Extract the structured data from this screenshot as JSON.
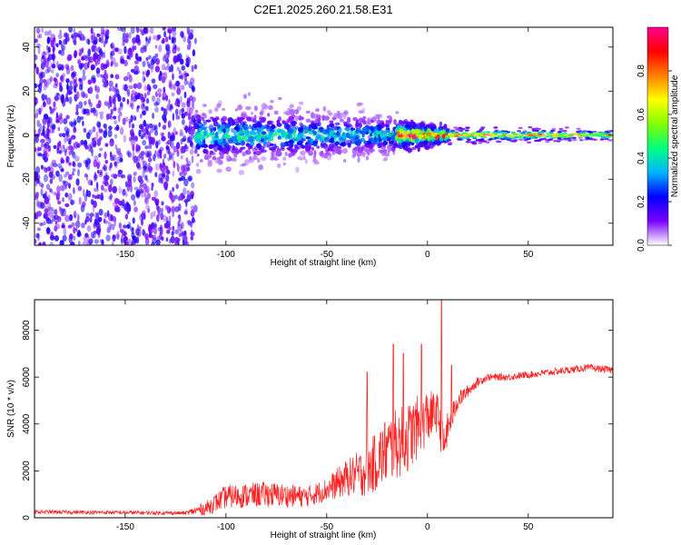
{
  "figure_title": "C2E1.2025.260.21.58.E31",
  "chart_data": [
    {
      "type": "heatmap",
      "title": "",
      "xlabel": "Height of straight line (km)",
      "ylabel": "Frequency (Hz)",
      "xlim": [
        -195,
        92
      ],
      "ylim": [
        -50,
        49
      ],
      "xticks": [
        -150,
        -100,
        -50,
        0,
        50
      ],
      "yticks": [
        -40,
        -20,
        0,
        20,
        40
      ],
      "xtick_labels": [
        "-150",
        "-100",
        "-50",
        "0",
        "50"
      ],
      "ytick_labels": [
        "-40",
        "-20",
        "0",
        "20",
        "40"
      ],
      "grid": false,
      "colorbar": {
        "label": "Normalized spectral amplitude",
        "range": [
          0.0,
          1.0
        ],
        "ticks": [
          0.0,
          0.2,
          0.4,
          0.6,
          0.8
        ],
        "tick_labels": [
          "0.0",
          "0.2",
          "0.4",
          "0.6",
          "0.8"
        ],
        "colormap": [
          "#ffffff",
          "#7a00ff",
          "#0000ff",
          "#00b4ff",
          "#00ff80",
          "#80ff00",
          "#ffff00",
          "#ff8000",
          "#ff0000",
          "#ff0090"
        ]
      },
      "regions": [
        {
          "x_range": [
            -195,
            -115
          ],
          "y_range": [
            -50,
            49
          ],
          "amplitude": 0.12,
          "pattern": "speckled noise"
        },
        {
          "x_range": [
            -115,
            -15
          ],
          "center_freq": 0,
          "half_width": [
            12,
            8
          ],
          "amplitude": 0.3,
          "pattern": "broadband blobs"
        },
        {
          "x_range": [
            -15,
            10
          ],
          "center_freq": 0,
          "half_width": [
            6,
            3
          ],
          "amplitude": 0.7,
          "pattern": "narrow band with red cores"
        },
        {
          "x_range": [
            10,
            92
          ],
          "center_freq": 0,
          "half_width": [
            3,
            2
          ],
          "amplitude": 0.55,
          "pattern": "steady narrow line"
        }
      ]
    },
    {
      "type": "line",
      "title": "",
      "xlabel": "Height of straight line (km)",
      "ylabel": "SNR (10 * v/v)",
      "xlim": [
        -195,
        92
      ],
      "ylim": [
        0,
        9300
      ],
      "xticks": [
        -150,
        -100,
        -50,
        0,
        50
      ],
      "yticks": [
        0,
        2000,
        4000,
        6000,
        8000
      ],
      "xtick_labels": [
        "-150",
        "-100",
        "-50",
        "0",
        "50"
      ],
      "ytick_labels": [
        "0",
        "2000",
        "4000",
        "6000",
        "8000"
      ],
      "grid": false,
      "series": [
        {
          "name": "SNR",
          "color": "#ff2020",
          "envelope": {
            "x": [
              -195,
              -120,
              -110,
              -100,
              -80,
              -60,
              -50,
              -40,
              -30,
              -20,
              -10,
              0,
              5,
              8,
              10,
              15,
              20,
              25,
              30,
              40,
              60,
              80,
              92
            ],
            "y": [
              250,
              200,
              400,
              900,
              1000,
              900,
              1200,
              1700,
              2000,
              2900,
              3400,
              4300,
              4500,
              3000,
              3800,
              5000,
              5400,
              5800,
              6000,
              6000,
              6200,
              6400,
              6300
            ],
            "noise": [
              80,
              80,
              300,
              500,
              550,
              450,
              500,
              800,
              1100,
              1500,
              1500,
              1200,
              800,
              900,
              700,
              400,
              250,
              200,
              150,
              150,
              150,
              150,
              150
            ]
          },
          "spikes": [
            {
              "x": -30,
              "y": 6200
            },
            {
              "x": -17,
              "y": 7400
            },
            {
              "x": -12,
              "y": 7000
            },
            {
              "x": -3,
              "y": 7400
            },
            {
              "x": 7,
              "y": 9300
            },
            {
              "x": 12,
              "y": 6500
            }
          ]
        }
      ]
    }
  ]
}
